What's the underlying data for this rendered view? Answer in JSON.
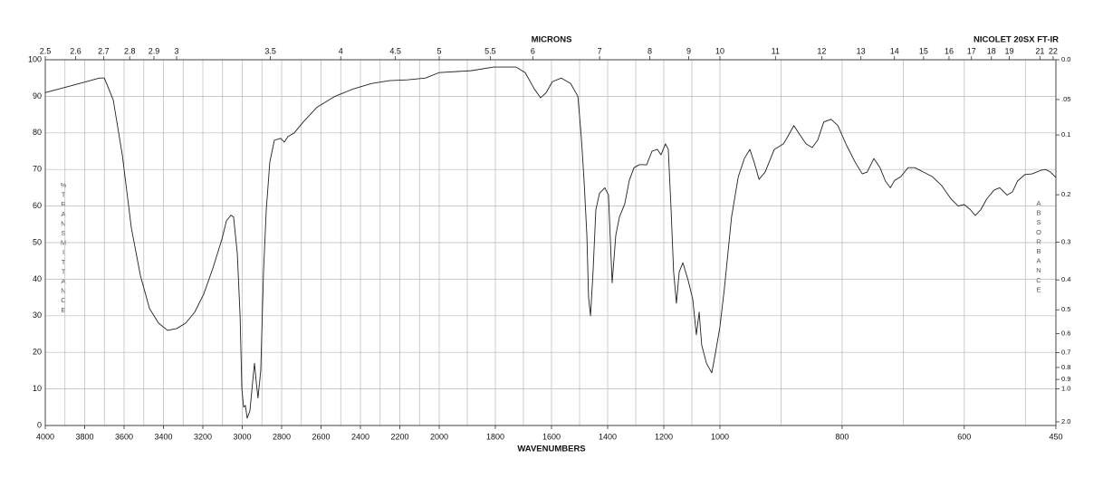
{
  "chart_data": {
    "type": "line",
    "title": "NICOLET 20SX FT-IR",
    "xlabel": "WAVENUMBERS",
    "x2label": "MICRONS",
    "ylabel": "%TRANSMITTANCE",
    "y2label": "ABSORBANCE",
    "xlim": [
      4000,
      450
    ],
    "x_breaks": [
      2000,
      1000
    ],
    "xticks": [
      4000,
      3800,
      3600,
      3400,
      3200,
      3000,
      2800,
      2600,
      2400,
      2200,
      2000,
      1800,
      1600,
      1400,
      1200,
      1000,
      800,
      600,
      450
    ],
    "xgrid": [
      3900,
      3800,
      3700,
      3600,
      3500,
      3400,
      3300,
      3200,
      3100,
      3000,
      2900,
      2800,
      2700,
      2600,
      2500,
      2400,
      2300,
      2200,
      2100,
      2000,
      1900,
      1800,
      1700,
      1600,
      1500,
      1400,
      1300,
      1200,
      1100,
      1000,
      900,
      800,
      700,
      600,
      500
    ],
    "x2ticks": [
      2.5,
      2.6,
      2.7,
      2.8,
      2.9,
      3,
      3.5,
      4,
      4.5,
      5,
      5.5,
      6,
      7,
      8,
      9,
      10,
      11,
      12,
      13,
      14,
      15,
      16,
      17,
      18,
      19,
      21,
      22
    ],
    "ylim": [
      0,
      100
    ],
    "yticks": [
      0,
      10,
      20,
      30,
      40,
      50,
      60,
      70,
      80,
      90,
      100
    ],
    "y2ticks": [
      {
        "value": 0,
        "label": "0.0"
      },
      {
        "value": 0.05,
        "label": ".05"
      },
      0.1,
      0.2,
      0.3,
      0.4,
      0.5,
      0.6,
      0.7,
      0.8,
      0.9,
      {
        "value": 1,
        "label": "1.0"
      },
      {
        "value": 2,
        "label": "2.0"
      }
    ],
    "grid": true,
    "color": "#222222",
    "x": [
      4000,
      3862,
      3724,
      3700,
      3655,
      3609,
      3563,
      3517,
      3471,
      3425,
      3379,
      3333,
      3287,
      3241,
      3195,
      3149,
      3103,
      3080,
      3057,
      3044,
      3025,
      3011,
      3002,
      2993,
      2984,
      2975,
      2961,
      2947,
      2938,
      2929,
      2920,
      2906,
      2892,
      2878,
      2860,
      2837,
      2805,
      2786,
      2768,
      2736,
      2690,
      2621,
      2529,
      2437,
      2345,
      2253,
      2161,
      2069,
      2000,
      1887,
      1806,
      1726,
      1694,
      1661,
      1639,
      1619,
      1597,
      1565,
      1532,
      1506,
      1494,
      1484,
      1474,
      1468,
      1461,
      1452,
      1442,
      1429,
      1410,
      1397,
      1384,
      1371,
      1358,
      1339,
      1323,
      1306,
      1287,
      1261,
      1242,
      1223,
      1210,
      1194,
      1184,
      1174,
      1165,
      1155,
      1145,
      1132,
      1113,
      1097,
      1084,
      1074,
      1065,
      1048,
      1029,
      1016,
      1000,
      993,
      981,
      970,
      960,
      951,
      944,
      936,
      926,
      911,
      896,
      889,
      879,
      870,
      859,
      849,
      840,
      830,
      818,
      807,
      793,
      778,
      767,
      759,
      748,
      738,
      729,
      721,
      714,
      704,
      692,
      681,
      667,
      652,
      637,
      622,
      610,
      600,
      590,
      582,
      573,
      563,
      551,
      542,
      530,
      521,
      513,
      501,
      489,
      474,
      467,
      459,
      450
    ],
    "values": [
      91,
      93,
      95,
      95,
      89,
      74,
      54,
      41,
      32,
      28,
      26,
      26.5,
      28,
      31,
      36,
      43,
      51,
      56,
      57.5,
      57,
      47,
      30,
      10,
      5,
      5.5,
      2,
      4,
      12,
      17,
      12,
      7.5,
      15,
      42,
      59,
      72,
      78,
      78.5,
      77.5,
      79,
      80,
      83,
      87,
      90,
      92,
      93.5,
      94.3,
      94.5,
      95,
      96.5,
      97,
      98,
      98,
      96.5,
      92,
      89.6,
      91,
      94,
      95,
      93.5,
      90,
      79,
      67,
      52,
      35,
      30,
      42,
      59,
      63.5,
      65,
      63,
      39,
      52,
      57,
      60.6,
      67,
      70.5,
      71.3,
      71.3,
      75,
      75.5,
      74,
      77,
      75.5,
      59,
      42,
      33.4,
      42,
      44.5,
      39.6,
      34.6,
      24.8,
      31,
      22,
      17,
      14.4,
      19.8,
      27,
      37,
      57,
      68,
      73,
      75.5,
      72,
      67.3,
      69.3,
      75.5,
      77,
      79,
      82,
      79.7,
      77,
      76,
      78,
      83,
      83.7,
      82,
      76.7,
      71.8,
      68.8,
      69.3,
      73,
      70.5,
      66.8,
      65,
      67,
      68,
      70.5,
      70.5,
      69.3,
      68,
      65.6,
      62,
      60,
      60.4,
      59,
      57.4,
      59,
      62,
      64.4,
      65,
      63,
      63.9,
      66.8,
      68.6,
      68.8,
      69.8,
      70,
      69.3,
      67.8
    ]
  }
}
